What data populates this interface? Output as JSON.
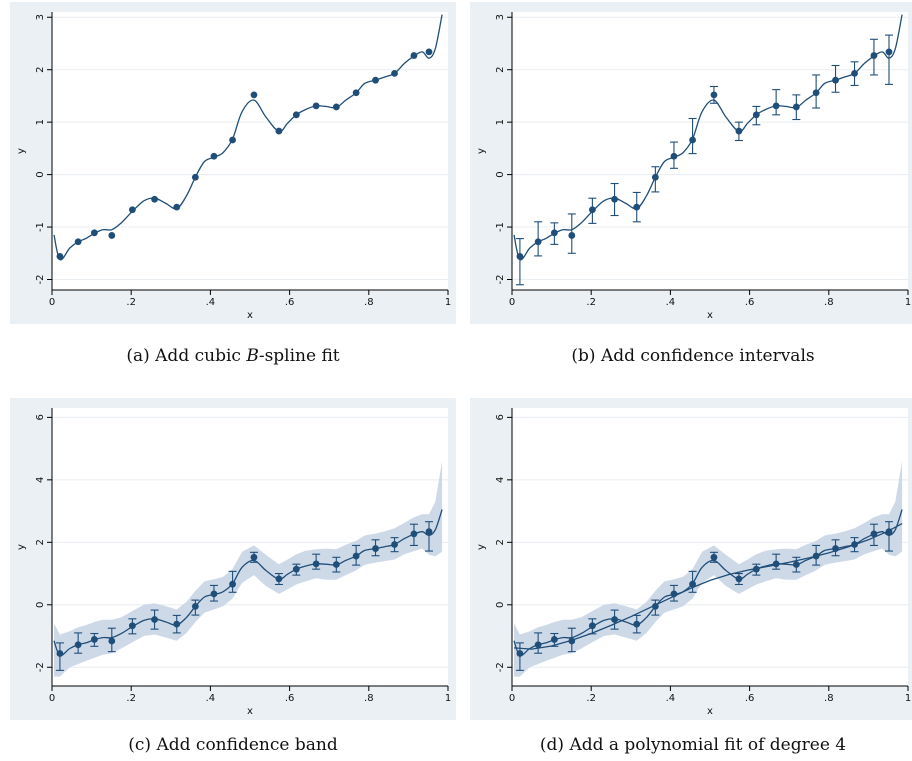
{
  "captions": [
    {
      "label": "(a)",
      "pre": "Add cubic ",
      "em": "B",
      "post": "-spline fit"
    },
    {
      "label": "(b)",
      "pre": "Add confidence intervals",
      "em": "",
      "post": ""
    },
    {
      "label": "(c)",
      "pre": "Add confidence band",
      "em": "",
      "post": ""
    },
    {
      "label": "(d)",
      "pre": "Add a polynomial fit of degree 4",
      "em": "",
      "post": ""
    }
  ],
  "colors": {
    "panel_background": "#eaf0f4",
    "plot_background": "#ffffff",
    "series": "#1f4e79",
    "band": "#c9d5e6",
    "grid": "#e8edf2"
  },
  "chart_data": [
    {
      "type": "scatter",
      "xlabel": "x",
      "ylabel": "y",
      "xlim": [
        0,
        1
      ],
      "ylim": [
        -2.2,
        3.1
      ],
      "xticks": [
        0,
        0.2,
        0.4,
        0.6,
        0.8,
        1
      ],
      "xtick_labels": [
        "0",
        ".2",
        ".4",
        ".6",
        ".8",
        "1"
      ],
      "yticks": [
        -2,
        -1,
        0,
        1,
        2,
        3
      ],
      "ytick_labels": [
        "-2",
        "-1",
        "0",
        "1",
        "2",
        "3"
      ],
      "grid": true,
      "x": [
        0.02,
        0.066,
        0.107,
        0.151,
        0.203,
        0.259,
        0.315,
        0.362,
        0.409,
        0.456,
        0.51,
        0.573,
        0.617,
        0.667,
        0.718,
        0.768,
        0.817,
        0.865,
        0.914,
        0.952
      ],
      "y": [
        -1.56,
        -1.28,
        -1.11,
        -1.16,
        -0.67,
        -0.47,
        -0.62,
        -0.05,
        0.35,
        0.66,
        1.52,
        0.83,
        1.14,
        1.31,
        1.29,
        1.56,
        1.8,
        1.93,
        2.27,
        2.34
      ],
      "spline": {
        "name": "cubic B-spline fit",
        "x": [
          0.005,
          0.02,
          0.045,
          0.066,
          0.085,
          0.107,
          0.128,
          0.151,
          0.175,
          0.203,
          0.232,
          0.259,
          0.288,
          0.315,
          0.34,
          0.362,
          0.385,
          0.409,
          0.432,
          0.456,
          0.48,
          0.51,
          0.54,
          0.573,
          0.595,
          0.617,
          0.64,
          0.667,
          0.692,
          0.718,
          0.742,
          0.768,
          0.79,
          0.817,
          0.84,
          0.865,
          0.89,
          0.914,
          0.935,
          0.952,
          0.968,
          0.985
        ],
        "y": [
          -1.15,
          -1.62,
          -1.4,
          -1.28,
          -1.22,
          -1.12,
          -1.05,
          -1.05,
          -0.92,
          -0.7,
          -0.5,
          -0.45,
          -0.55,
          -0.65,
          -0.4,
          -0.05,
          0.25,
          0.33,
          0.42,
          0.68,
          1.2,
          1.42,
          1.1,
          0.82,
          0.98,
          1.14,
          1.24,
          1.31,
          1.3,
          1.28,
          1.42,
          1.56,
          1.74,
          1.8,
          1.86,
          1.93,
          2.12,
          2.26,
          2.34,
          2.22,
          2.4,
          3.05
        ]
      }
    },
    {
      "type": "scatter",
      "xlabel": "x",
      "ylabel": "y",
      "xlim": [
        0,
        1
      ],
      "ylim": [
        -2.2,
        3.1
      ],
      "xticks": [
        0,
        0.2,
        0.4,
        0.6,
        0.8,
        1
      ],
      "xtick_labels": [
        "0",
        ".2",
        ".4",
        ".6",
        ".8",
        "1"
      ],
      "yticks": [
        -2,
        -1,
        0,
        1,
        2,
        3
      ],
      "ytick_labels": [
        "-2",
        "-1",
        "0",
        "1",
        "2",
        "3"
      ],
      "grid": true,
      "x": [
        0.02,
        0.066,
        0.107,
        0.151,
        0.203,
        0.259,
        0.315,
        0.362,
        0.409,
        0.456,
        0.51,
        0.573,
        0.617,
        0.667,
        0.718,
        0.768,
        0.817,
        0.865,
        0.914,
        0.952
      ],
      "y": [
        -1.56,
        -1.28,
        -1.11,
        -1.16,
        -0.67,
        -0.47,
        -0.62,
        -0.05,
        0.35,
        0.66,
        1.52,
        0.83,
        1.14,
        1.31,
        1.29,
        1.56,
        1.8,
        1.93,
        2.27,
        2.34
      ],
      "ci_low": [
        -2.1,
        -1.55,
        -1.33,
        -1.5,
        -0.93,
        -0.78,
        -0.9,
        -0.33,
        0.12,
        0.4,
        1.36,
        0.65,
        0.95,
        1.14,
        1.05,
        1.27,
        1.57,
        1.7,
        1.9,
        1.72
      ],
      "ci_high": [
        -1.22,
        -0.9,
        -0.92,
        -0.75,
        -0.45,
        -0.17,
        -0.34,
        0.15,
        0.62,
        1.07,
        1.68,
        1.0,
        1.3,
        1.62,
        1.52,
        1.9,
        2.08,
        2.15,
        2.58,
        2.66
      ],
      "spline": {
        "name": "cubic B-spline fit",
        "x": [
          0.005,
          0.02,
          0.045,
          0.066,
          0.085,
          0.107,
          0.128,
          0.151,
          0.175,
          0.203,
          0.232,
          0.259,
          0.288,
          0.315,
          0.34,
          0.362,
          0.385,
          0.409,
          0.432,
          0.456,
          0.48,
          0.51,
          0.54,
          0.573,
          0.595,
          0.617,
          0.64,
          0.667,
          0.692,
          0.718,
          0.742,
          0.768,
          0.79,
          0.817,
          0.84,
          0.865,
          0.89,
          0.914,
          0.935,
          0.952,
          0.968,
          0.985
        ],
        "y": [
          -1.15,
          -1.62,
          -1.4,
          -1.28,
          -1.22,
          -1.12,
          -1.05,
          -1.05,
          -0.92,
          -0.7,
          -0.5,
          -0.45,
          -0.55,
          -0.65,
          -0.4,
          -0.05,
          0.25,
          0.33,
          0.42,
          0.68,
          1.2,
          1.42,
          1.1,
          0.82,
          0.98,
          1.14,
          1.24,
          1.31,
          1.3,
          1.28,
          1.42,
          1.56,
          1.74,
          1.8,
          1.86,
          1.93,
          2.12,
          2.26,
          2.34,
          2.22,
          2.4,
          3.05
        ]
      }
    },
    {
      "type": "scatter",
      "xlabel": "x",
      "ylabel": "y",
      "xlim": [
        0,
        1
      ],
      "ylim": [
        -2.6,
        6.3
      ],
      "xticks": [
        0,
        0.2,
        0.4,
        0.6,
        0.8,
        1
      ],
      "xtick_labels": [
        "0",
        ".2",
        ".4",
        ".6",
        ".8",
        "1"
      ],
      "yticks": [
        -2,
        0,
        2,
        4,
        6
      ],
      "ytick_labels": [
        "-2",
        "0",
        "2",
        "4",
        "6"
      ],
      "grid": true,
      "x": [
        0.02,
        0.066,
        0.107,
        0.151,
        0.203,
        0.259,
        0.315,
        0.362,
        0.409,
        0.456,
        0.51,
        0.573,
        0.617,
        0.667,
        0.718,
        0.768,
        0.817,
        0.865,
        0.914,
        0.952
      ],
      "y": [
        -1.56,
        -1.28,
        -1.11,
        -1.16,
        -0.67,
        -0.47,
        -0.62,
        -0.05,
        0.35,
        0.66,
        1.52,
        0.83,
        1.14,
        1.31,
        1.29,
        1.56,
        1.8,
        1.93,
        2.27,
        2.34
      ],
      "ci_low": [
        -2.1,
        -1.55,
        -1.33,
        -1.5,
        -0.93,
        -0.78,
        -0.9,
        -0.33,
        0.12,
        0.4,
        1.36,
        0.65,
        0.95,
        1.14,
        1.05,
        1.27,
        1.57,
        1.7,
        1.9,
        1.72
      ],
      "ci_high": [
        -1.22,
        -0.9,
        -0.92,
        -0.75,
        -0.45,
        -0.17,
        -0.34,
        0.15,
        0.62,
        1.07,
        1.68,
        1.0,
        1.3,
        1.62,
        1.52,
        1.9,
        2.08,
        2.15,
        2.58,
        2.66
      ],
      "spline": {
        "name": "cubic B-spline fit",
        "x": [
          0.005,
          0.02,
          0.045,
          0.066,
          0.085,
          0.107,
          0.128,
          0.151,
          0.175,
          0.203,
          0.232,
          0.259,
          0.288,
          0.315,
          0.34,
          0.362,
          0.385,
          0.409,
          0.432,
          0.456,
          0.48,
          0.51,
          0.54,
          0.573,
          0.595,
          0.617,
          0.64,
          0.667,
          0.692,
          0.718,
          0.742,
          0.768,
          0.79,
          0.817,
          0.84,
          0.865,
          0.89,
          0.914,
          0.935,
          0.952,
          0.968,
          0.985
        ],
        "y": [
          -1.15,
          -1.62,
          -1.4,
          -1.28,
          -1.22,
          -1.12,
          -1.05,
          -1.05,
          -0.92,
          -0.7,
          -0.5,
          -0.45,
          -0.55,
          -0.65,
          -0.4,
          -0.05,
          0.25,
          0.33,
          0.42,
          0.68,
          1.2,
          1.42,
          1.1,
          0.82,
          0.98,
          1.14,
          1.24,
          1.31,
          1.3,
          1.28,
          1.42,
          1.56,
          1.74,
          1.8,
          1.86,
          1.93,
          2.12,
          2.26,
          2.34,
          2.22,
          2.4,
          3.05
        ],
        "band_low": [
          -2.3,
          -2.3,
          -2.0,
          -1.9,
          -1.8,
          -1.7,
          -1.6,
          -1.55,
          -1.4,
          -1.2,
          -1.0,
          -0.95,
          -1.05,
          -1.15,
          -0.9,
          -0.55,
          -0.25,
          -0.15,
          -0.05,
          0.2,
          0.7,
          0.95,
          0.6,
          0.35,
          0.5,
          0.65,
          0.75,
          0.85,
          0.8,
          0.8,
          0.95,
          1.1,
          1.28,
          1.35,
          1.4,
          1.45,
          1.62,
          1.72,
          1.8,
          1.6,
          1.55,
          1.7
        ],
        "band_high": [
          -0.6,
          -0.95,
          -0.85,
          -0.72,
          -0.65,
          -0.55,
          -0.48,
          -0.48,
          -0.4,
          -0.2,
          0.0,
          0.05,
          -0.05,
          -0.15,
          0.1,
          0.45,
          0.75,
          0.82,
          0.9,
          1.15,
          1.7,
          1.9,
          1.6,
          1.3,
          1.45,
          1.62,
          1.73,
          1.78,
          1.8,
          1.78,
          1.92,
          2.05,
          2.22,
          2.28,
          2.35,
          2.45,
          2.62,
          2.8,
          2.9,
          2.9,
          3.3,
          4.6
        ]
      }
    },
    {
      "type": "scatter",
      "xlabel": "x",
      "ylabel": "y",
      "xlim": [
        0,
        1
      ],
      "ylim": [
        -2.6,
        6.3
      ],
      "xticks": [
        0,
        0.2,
        0.4,
        0.6,
        0.8,
        1
      ],
      "xtick_labels": [
        "0",
        ".2",
        ".4",
        ".6",
        ".8",
        "1"
      ],
      "yticks": [
        -2,
        0,
        2,
        4,
        6
      ],
      "ytick_labels": [
        "-2",
        "0",
        "2",
        "4",
        "6"
      ],
      "grid": true,
      "x": [
        0.02,
        0.066,
        0.107,
        0.151,
        0.203,
        0.259,
        0.315,
        0.362,
        0.409,
        0.456,
        0.51,
        0.573,
        0.617,
        0.667,
        0.718,
        0.768,
        0.817,
        0.865,
        0.914,
        0.952
      ],
      "y": [
        -1.56,
        -1.28,
        -1.11,
        -1.16,
        -0.67,
        -0.47,
        -0.62,
        -0.05,
        0.35,
        0.66,
        1.52,
        0.83,
        1.14,
        1.31,
        1.29,
        1.56,
        1.8,
        1.93,
        2.27,
        2.34
      ],
      "ci_low": [
        -2.1,
        -1.55,
        -1.33,
        -1.5,
        -0.93,
        -0.78,
        -0.9,
        -0.33,
        0.12,
        0.4,
        1.36,
        0.65,
        0.95,
        1.14,
        1.05,
        1.27,
        1.57,
        1.7,
        1.9,
        1.72
      ],
      "ci_high": [
        -1.22,
        -0.9,
        -0.92,
        -0.75,
        -0.45,
        -0.17,
        -0.34,
        0.15,
        0.62,
        1.07,
        1.68,
        1.0,
        1.3,
        1.62,
        1.52,
        1.9,
        2.08,
        2.15,
        2.58,
        2.66
      ],
      "spline": {
        "name": "cubic B-spline fit",
        "x": [
          0.005,
          0.02,
          0.045,
          0.066,
          0.085,
          0.107,
          0.128,
          0.151,
          0.175,
          0.203,
          0.232,
          0.259,
          0.288,
          0.315,
          0.34,
          0.362,
          0.385,
          0.409,
          0.432,
          0.456,
          0.48,
          0.51,
          0.54,
          0.573,
          0.595,
          0.617,
          0.64,
          0.667,
          0.692,
          0.718,
          0.742,
          0.768,
          0.79,
          0.817,
          0.84,
          0.865,
          0.89,
          0.914,
          0.935,
          0.952,
          0.968,
          0.985
        ],
        "y": [
          -1.15,
          -1.62,
          -1.4,
          -1.28,
          -1.22,
          -1.12,
          -1.05,
          -1.05,
          -0.92,
          -0.7,
          -0.5,
          -0.45,
          -0.55,
          -0.65,
          -0.4,
          -0.05,
          0.25,
          0.33,
          0.42,
          0.68,
          1.2,
          1.42,
          1.1,
          0.82,
          0.98,
          1.14,
          1.24,
          1.31,
          1.3,
          1.28,
          1.42,
          1.56,
          1.74,
          1.8,
          1.86,
          1.93,
          2.12,
          2.26,
          2.34,
          2.22,
          2.4,
          3.05
        ],
        "band_low": [
          -2.3,
          -2.3,
          -2.0,
          -1.9,
          -1.8,
          -1.7,
          -1.6,
          -1.55,
          -1.4,
          -1.2,
          -1.0,
          -0.95,
          -1.05,
          -1.15,
          -0.9,
          -0.55,
          -0.25,
          -0.15,
          -0.05,
          0.2,
          0.7,
          0.95,
          0.6,
          0.35,
          0.5,
          0.65,
          0.75,
          0.85,
          0.8,
          0.8,
          0.95,
          1.1,
          1.28,
          1.35,
          1.4,
          1.45,
          1.62,
          1.72,
          1.8,
          1.6,
          1.55,
          1.7
        ],
        "band_high": [
          -0.6,
          -0.95,
          -0.85,
          -0.72,
          -0.65,
          -0.55,
          -0.48,
          -0.48,
          -0.4,
          -0.2,
          0.0,
          0.05,
          -0.05,
          -0.15,
          0.1,
          0.45,
          0.75,
          0.82,
          0.9,
          1.15,
          1.7,
          1.9,
          1.6,
          1.3,
          1.45,
          1.62,
          1.73,
          1.78,
          1.8,
          1.78,
          1.92,
          2.05,
          2.22,
          2.28,
          2.35,
          2.45,
          2.62,
          2.8,
          2.9,
          2.9,
          3.3,
          4.6
        ]
      },
      "poly": {
        "name": "polynomial fit of degree 4",
        "degree": 4,
        "x": [
          0.005,
          0.05,
          0.1,
          0.15,
          0.2,
          0.25,
          0.3,
          0.35,
          0.4,
          0.45,
          0.5,
          0.55,
          0.6,
          0.65,
          0.7,
          0.75,
          0.8,
          0.85,
          0.9,
          0.95,
          0.985
        ],
        "y": [
          -1.38,
          -1.42,
          -1.32,
          -1.14,
          -0.92,
          -0.66,
          -0.38,
          -0.08,
          0.22,
          0.52,
          0.78,
          0.98,
          1.12,
          1.24,
          1.36,
          1.5,
          1.66,
          1.86,
          2.08,
          2.36,
          2.6
        ]
      }
    }
  ]
}
